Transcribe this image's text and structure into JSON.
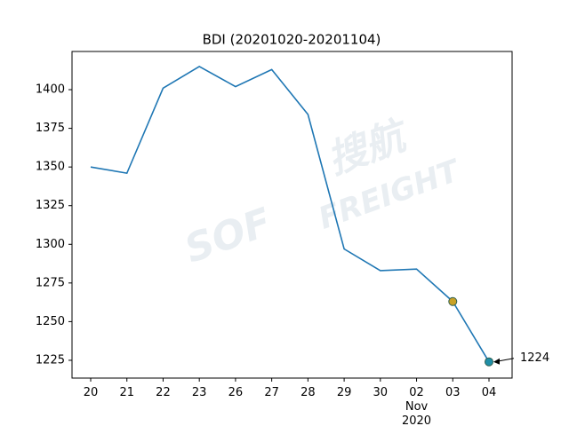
{
  "chart_data": {
    "type": "line",
    "title": "BDI (20201020-20201104)",
    "categories": [
      "20",
      "21",
      "22",
      "23",
      "26",
      "27",
      "28",
      "29",
      "30",
      "02\nNov\n2020",
      "03",
      "04"
    ],
    "series": [
      {
        "name": "BDI",
        "color": "#1f77b4",
        "values": [
          1350,
          1346,
          1401,
          1415,
          1402,
          1413,
          1384,
          1297,
          1283,
          1284,
          1263,
          1224
        ],
        "marker_colors": [
          null,
          null,
          null,
          null,
          null,
          null,
          null,
          null,
          null,
          null,
          "#c9a227",
          "#1f8fa8"
        ],
        "value_labels": [
          null,
          null,
          null,
          null,
          null,
          null,
          null,
          null,
          null,
          null,
          null,
          "1224"
        ]
      }
    ],
    "ylim": [
      1213.5,
      1424.7
    ],
    "yticks": [
      1225,
      1250,
      1275,
      1300,
      1325,
      1350,
      1375,
      1400
    ],
    "grid": false,
    "watermark": [
      "SOF",
      "搜航",
      "FREIGHT"
    ]
  }
}
